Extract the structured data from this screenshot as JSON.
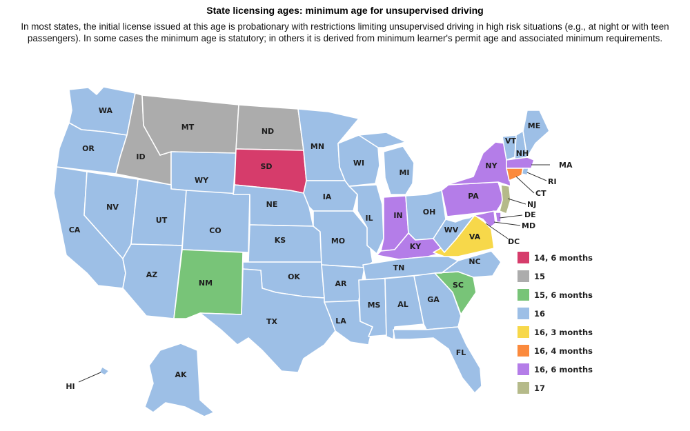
{
  "title": "State licensing ages: minimum age for unsupervised driving",
  "subtitle": "In most states, the initial license issued at this age is probationary with restrictions limiting unsupervised driving in high risk situations (e.g., at night or with teen passengers). In some cases the minimum age is statutory; in others it is derived from minimum learner's permit age and associated minimum requirements.",
  "colors": {
    "c1": "#d63c6b",
    "c2": "#acacac",
    "c3": "#78c478",
    "c4": "#9dbfe6",
    "c5": "#f7d84a",
    "c6": "#fb8a3d",
    "c7": "#b47de8",
    "c8": "#b5ba8a"
  },
  "legend": [
    {
      "label": "14, 6 months",
      "color": "#d63c6b"
    },
    {
      "label": "15",
      "color": "#acacac"
    },
    {
      "label": "15, 6 months",
      "color": "#78c478"
    },
    {
      "label": "16",
      "color": "#9dbfe6"
    },
    {
      "label": "16, 3 months",
      "color": "#f7d84a"
    },
    {
      "label": "16, 4 months",
      "color": "#fb8a3d"
    },
    {
      "label": "16, 6 months",
      "color": "#b47de8"
    },
    {
      "label": "17",
      "color": "#b5ba8a"
    }
  ],
  "states": {
    "WA": {
      "label": "WA",
      "category": "16"
    },
    "OR": {
      "label": "OR",
      "category": "16"
    },
    "CA": {
      "label": "CA",
      "category": "16"
    },
    "NV": {
      "label": "NV",
      "category": "16"
    },
    "ID": {
      "label": "ID",
      "category": "15"
    },
    "MT": {
      "label": "MT",
      "category": "15"
    },
    "WY": {
      "label": "WY",
      "category": "16"
    },
    "UT": {
      "label": "UT",
      "category": "16"
    },
    "AZ": {
      "label": "AZ",
      "category": "16"
    },
    "CO": {
      "label": "CO",
      "category": "16"
    },
    "NM": {
      "label": "NM",
      "category": "15, 6 months"
    },
    "ND": {
      "label": "ND",
      "category": "15"
    },
    "SD": {
      "label": "SD",
      "category": "14, 6 months"
    },
    "NE": {
      "label": "NE",
      "category": "16"
    },
    "KS": {
      "label": "KS",
      "category": "16"
    },
    "OK": {
      "label": "OK",
      "category": "16"
    },
    "TX": {
      "label": "TX",
      "category": "16"
    },
    "MN": {
      "label": "MN",
      "category": "16"
    },
    "IA": {
      "label": "IA",
      "category": "16"
    },
    "MO": {
      "label": "MO",
      "category": "16"
    },
    "AR": {
      "label": "AR",
      "category": "16"
    },
    "LA": {
      "label": "LA",
      "category": "16"
    },
    "WI": {
      "label": "WI",
      "category": "16"
    },
    "IL": {
      "label": "IL",
      "category": "16"
    },
    "MI": {
      "label": "MI",
      "category": "16"
    },
    "IN": {
      "label": "IN",
      "category": "16, 6 months"
    },
    "OH": {
      "label": "OH",
      "category": "16"
    },
    "KY": {
      "label": "KY",
      "category": "16, 6 months"
    },
    "TN": {
      "label": "TN",
      "category": "16"
    },
    "MS": {
      "label": "MS",
      "category": "16"
    },
    "AL": {
      "label": "AL",
      "category": "16"
    },
    "GA": {
      "label": "GA",
      "category": "16"
    },
    "FL": {
      "label": "FL",
      "category": "16"
    },
    "SC": {
      "label": "SC",
      "category": "15, 6 months"
    },
    "NC": {
      "label": "NC",
      "category": "16"
    },
    "VA": {
      "label": "VA",
      "category": "16, 3 months"
    },
    "WV": {
      "label": "WV",
      "category": "16"
    },
    "PA": {
      "label": "PA",
      "category": "16, 6 months"
    },
    "NY": {
      "label": "NY",
      "category": "16, 6 months"
    },
    "VT": {
      "label": "VT",
      "category": "16"
    },
    "NH": {
      "label": "NH",
      "category": "16"
    },
    "ME": {
      "label": "ME",
      "category": "16"
    },
    "MA": {
      "label": "MA",
      "category": "16, 6 months"
    },
    "RI": {
      "label": "RI",
      "category": "16"
    },
    "CT": {
      "label": "CT",
      "category": "16, 4 months"
    },
    "NJ": {
      "label": "NJ",
      "category": "17"
    },
    "DE": {
      "label": "DE",
      "category": "16, 6 months"
    },
    "MD": {
      "label": "MD",
      "category": "16, 6 months"
    },
    "DC": {
      "label": "DC",
      "category": "16, 6 months"
    },
    "AK": {
      "label": "AK",
      "category": "16"
    },
    "HI": {
      "label": "HI",
      "category": "16"
    }
  }
}
